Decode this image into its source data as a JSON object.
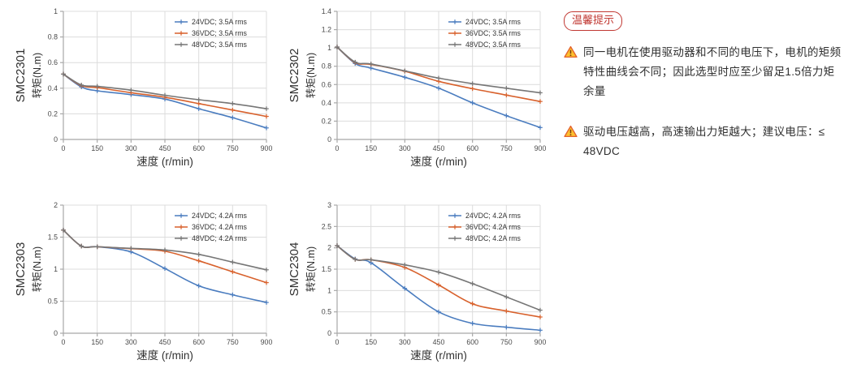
{
  "theme": {
    "background": "#ffffff",
    "tip_red": "#c13832",
    "warning_yellow": "#fcc02e",
    "warning_orange": "#e4632d",
    "grid": "#dcdcdc",
    "axis": "#a8a8a8",
    "tick": "#4a4a4a",
    "label": "#303030",
    "text": "#333333",
    "series_blue": "#4a7cbf",
    "series_orange": "#d8612c",
    "series_gray": "#767676"
  },
  "notes": {
    "badge": "温馨提示",
    "items": [
      "同一电机在使用驱动器和不同的电压下，电机的矩频特性曲线会不同；因此选型时应至少留足1.5倍力矩余量",
      "驱动电压越高，高速输出力矩越大；建议电压：≤ 48VDC"
    ]
  },
  "chart_data": [
    {
      "type": "line",
      "model": "SMC2301",
      "ylabel": "转矩(N.m)",
      "xlabel": "速度 (r/min)",
      "xlim": [
        0,
        900
      ],
      "ylim": [
        0,
        1
      ],
      "xtick_vals": [
        0,
        150,
        300,
        450,
        600,
        750,
        900
      ],
      "xtick_labels": [
        "0",
        "150",
        "300",
        "450",
        "600",
        "750",
        "900"
      ],
      "ytick_vals": [
        0,
        0.2,
        0.4,
        0.6,
        0.8,
        1
      ],
      "ytick_labels": [
        "0",
        "0.2",
        "0.4",
        "0.6",
        "0.8",
        "1"
      ],
      "grid": true,
      "legend_position": "top-right",
      "x": [
        0,
        80,
        150,
        300,
        450,
        600,
        750,
        900
      ],
      "series": [
        {
          "name": "24VDC; 3.5A rms",
          "color": "#4a7cbf",
          "values": [
            0.51,
            0.41,
            0.38,
            0.35,
            0.315,
            0.24,
            0.17,
            0.09
          ]
        },
        {
          "name": "36VDC; 3.5A rms",
          "color": "#d8612c",
          "values": [
            0.51,
            0.42,
            0.405,
            0.365,
            0.33,
            0.28,
            0.23,
            0.18
          ]
        },
        {
          "name": "48VDC; 3.5A rms",
          "color": "#767676",
          "values": [
            0.51,
            0.425,
            0.415,
            0.385,
            0.345,
            0.31,
            0.28,
            0.24
          ]
        }
      ]
    },
    {
      "type": "line",
      "model": "SMC2302",
      "ylabel": "转矩(N.m)",
      "xlabel": "速度 (r/min)",
      "xlim": [
        0,
        900
      ],
      "ylim": [
        0,
        1.4
      ],
      "xtick_vals": [
        0,
        150,
        300,
        450,
        600,
        750,
        900
      ],
      "xtick_labels": [
        "0",
        "150",
        "300",
        "450",
        "600",
        "750",
        "900"
      ],
      "ytick_vals": [
        0,
        0.2,
        0.4,
        0.6,
        0.8,
        1,
        1.2,
        1.4
      ],
      "ytick_labels": [
        "0",
        "0.2",
        "0.4",
        "0.6",
        "0.8",
        "1",
        "1.2",
        "1.4"
      ],
      "grid": true,
      "legend_position": "top-right",
      "x": [
        0,
        80,
        150,
        300,
        450,
        600,
        750,
        900
      ],
      "series": [
        {
          "name": "24VDC; 3.5A rms",
          "color": "#4a7cbf",
          "values": [
            1.01,
            0.83,
            0.78,
            0.68,
            0.56,
            0.4,
            0.26,
            0.13
          ]
        },
        {
          "name": "36VDC; 3.5A rms",
          "color": "#d8612c",
          "values": [
            1.01,
            0.84,
            0.82,
            0.745,
            0.635,
            0.555,
            0.485,
            0.415
          ]
        },
        {
          "name": "48VDC; 3.5A rms",
          "color": "#767676",
          "values": [
            1.01,
            0.845,
            0.825,
            0.75,
            0.67,
            0.61,
            0.56,
            0.51
          ]
        }
      ]
    },
    {
      "type": "line",
      "model": "SMC2303",
      "ylabel": "转矩(N.m)",
      "xlabel": "速度 (r/min)",
      "xlim": [
        0,
        900
      ],
      "ylim": [
        0,
        2
      ],
      "xtick_vals": [
        0,
        150,
        300,
        450,
        600,
        750,
        900
      ],
      "xtick_labels": [
        "0",
        "150",
        "300",
        "450",
        "600",
        "750",
        "900"
      ],
      "ytick_vals": [
        0,
        0.5,
        1,
        1.5,
        2
      ],
      "ytick_labels": [
        "0",
        "0.5",
        "1",
        "1.5",
        "2"
      ],
      "grid": true,
      "legend_position": "top-right",
      "x": [
        0,
        80,
        150,
        300,
        450,
        600,
        750,
        900
      ],
      "series": [
        {
          "name": "24VDC; 4.2A rms",
          "color": "#4a7cbf",
          "values": [
            1.61,
            1.36,
            1.35,
            1.27,
            1.01,
            0.74,
            0.6,
            0.48
          ]
        },
        {
          "name": "36VDC; 4.2A rms",
          "color": "#d8612c",
          "values": [
            1.61,
            1.36,
            1.35,
            1.32,
            1.28,
            1.13,
            0.96,
            0.79
          ]
        },
        {
          "name": "48VDC; 4.2A rms",
          "color": "#767676",
          "values": [
            1.61,
            1.36,
            1.35,
            1.325,
            1.3,
            1.23,
            1.11,
            0.99
          ]
        }
      ]
    },
    {
      "type": "line",
      "model": "SMC2304",
      "ylabel": "转矩(N.m)",
      "xlabel": "速度 (r/min)",
      "xlim": [
        0,
        900
      ],
      "ylim": [
        0,
        3
      ],
      "xtick_vals": [
        0,
        150,
        300,
        450,
        600,
        750,
        900
      ],
      "xtick_labels": [
        "0",
        "150",
        "300",
        "450",
        "600",
        "750",
        "900"
      ],
      "ytick_vals": [
        0,
        0.5,
        1,
        1.5,
        2,
        2.5,
        3
      ],
      "ytick_labels": [
        "0",
        "0.5",
        "1",
        "1.5",
        "2",
        "2.5",
        "3"
      ],
      "grid": true,
      "legend_position": "top-right",
      "x": [
        0,
        80,
        150,
        300,
        450,
        600,
        750,
        900
      ],
      "series": [
        {
          "name": "24VDC; 4.2A rms",
          "color": "#4a7cbf",
          "values": [
            2.05,
            1.74,
            1.65,
            1.05,
            0.5,
            0.23,
            0.14,
            0.07
          ]
        },
        {
          "name": "36VDC; 4.2A rms",
          "color": "#d8612c",
          "values": [
            2.05,
            1.73,
            1.72,
            1.54,
            1.13,
            0.69,
            0.52,
            0.38
          ]
        },
        {
          "name": "48VDC; 4.2A rms",
          "color": "#767676",
          "values": [
            2.05,
            1.73,
            1.72,
            1.6,
            1.43,
            1.16,
            0.85,
            0.54
          ]
        }
      ]
    }
  ]
}
